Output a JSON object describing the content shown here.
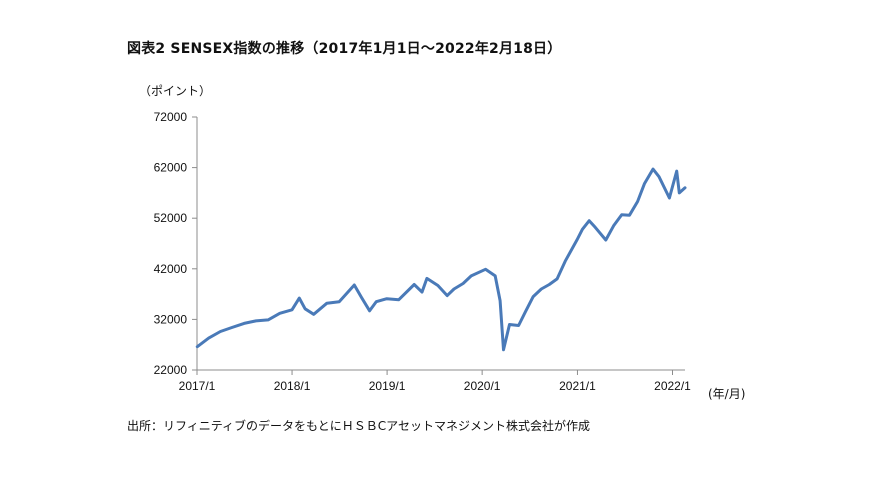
{
  "figure": {
    "title": "図表2 SENSEX指数の推移（2017年1月1日～2022年2月18日）",
    "source": "出所：リフィニティブのデータをもとにＨＳＢCアセットマネジメント株式会社が作成"
  },
  "chart_data": {
    "type": "line",
    "title": "図表2 SENSEX指数の推移（2017年1月1日～2022年2月18日）",
    "ylabel": "（ポイント）",
    "xlabel": "(年/月)",
    "ylim": [
      22000,
      72000
    ],
    "xlim": [
      "2017-01-01",
      "2022-02-18"
    ],
    "yticks": [
      22000,
      32000,
      42000,
      52000,
      62000,
      72000
    ],
    "xticks": [
      "2017/1",
      "2018/1",
      "2019/1",
      "2020/1",
      "2021/1",
      "2022/1"
    ],
    "grid": false,
    "line_color": "#4a7ab8",
    "series": [
      {
        "name": "",
        "x": [
          "2017-01-02",
          "2017-02-15",
          "2017-04-01",
          "2017-05-15",
          "2017-07-01",
          "2017-08-15",
          "2017-10-01",
          "2017-11-15",
          "2018-01-01",
          "2018-01-29",
          "2018-02-20",
          "2018-03-25",
          "2018-05-15",
          "2018-07-01",
          "2018-08-28",
          "2018-09-25",
          "2018-10-26",
          "2018-11-20",
          "2018-12-31",
          "2019-02-15",
          "2019-04-15",
          "2019-05-15",
          "2019-06-03",
          "2019-07-15",
          "2019-08-20",
          "2019-09-15",
          "2019-10-20",
          "2019-11-20",
          "2020-01-14",
          "2020-02-20",
          "2020-03-10",
          "2020-03-23",
          "2020-04-15",
          "2020-05-20",
          "2020-06-15",
          "2020-07-15",
          "2020-08-15",
          "2020-09-15",
          "2020-10-15",
          "2020-11-15",
          "2020-12-31",
          "2021-01-20",
          "2021-02-15",
          "2021-03-10",
          "2021-04-20",
          "2021-05-20",
          "2021-06-20",
          "2021-07-20",
          "2021-08-20",
          "2021-09-15",
          "2021-10-18",
          "2021-11-10",
          "2021-12-20",
          "2022-01-17",
          "2022-01-27",
          "2022-02-18"
        ],
        "y": [
          26600,
          28300,
          29600,
          30400,
          31200,
          31700,
          31900,
          33200,
          33900,
          36200,
          34100,
          33000,
          35200,
          35500,
          38800,
          36300,
          33700,
          35500,
          36100,
          35900,
          38900,
          37400,
          40100,
          38700,
          36700,
          38000,
          39100,
          40600,
          41900,
          40600,
          35700,
          26000,
          31000,
          30800,
          33500,
          36500,
          38000,
          38900,
          40000,
          43500,
          47800,
          49800,
          51500,
          50200,
          47700,
          50500,
          52700,
          52600,
          55300,
          58800,
          61700,
          60200,
          56000,
          61300,
          57000,
          58000
        ]
      }
    ]
  }
}
